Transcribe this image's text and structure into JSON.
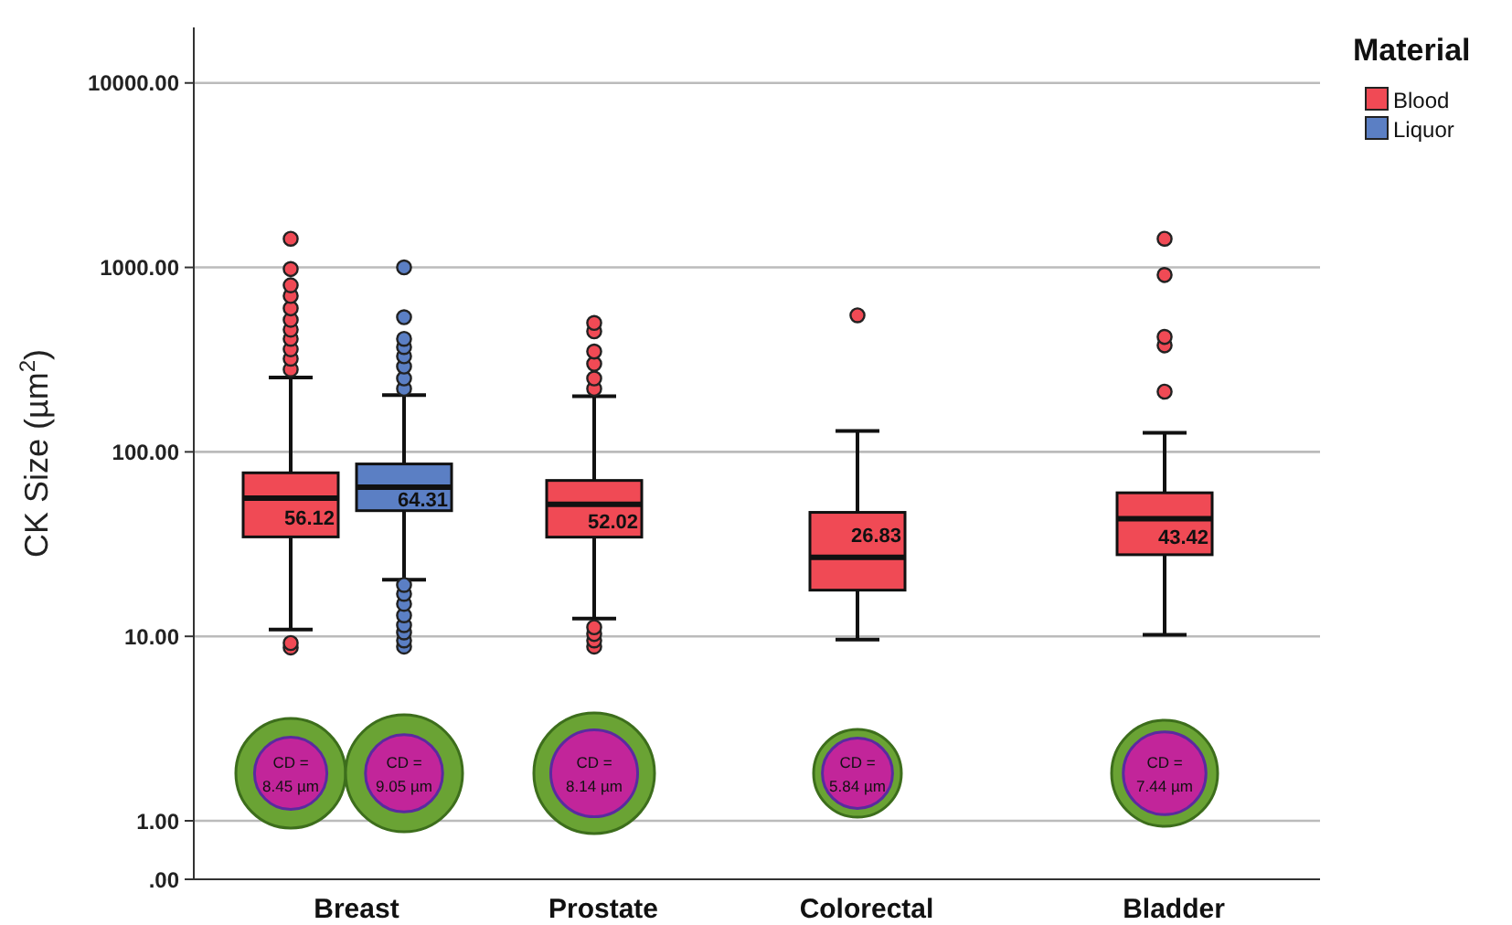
{
  "chart_data": {
    "type": "box",
    "ylabel": "CK Size (µm$^{2}$)",
    "legend_title": "Material",
    "legend": "right",
    "grid": "y",
    "log": true,
    "categories": [
      "Breast",
      "Prostate",
      "Colorectal",
      "Bladder"
    ],
    "ylim": [
      0,
      20000
    ],
    "yticks": [
      {
        "value": 0,
        "label": ".00"
      },
      {
        "value": 1,
        "label": "1.00"
      },
      {
        "value": 10,
        "label": "10.00"
      },
      {
        "value": 100,
        "label": "100.00"
      },
      {
        "value": 1000,
        "label": "1000.00"
      },
      {
        "value": 10000,
        "label": "10000.00"
      }
    ],
    "series": [
      {
        "name": "Blood",
        "color": "#f04a55",
        "boxes": [
          {
            "low": 10.9,
            "q1": 34.6,
            "median": 56.12,
            "q3": 77,
            "high": 253,
            "outliers": [
              8.7,
              9.2,
              280,
              320,
              360,
              410,
              460,
              520,
              600,
              700,
              800,
              980,
              1430
            ]
          },
          {
            "low": 12.5,
            "q1": 34.5,
            "median": 52.02,
            "q3": 70,
            "high": 200,
            "outliers": [
              8.8,
              9.5,
              10.3,
              11.2,
              220,
              250,
              300,
              350,
              450,
              500
            ]
          },
          {
            "low": 9.6,
            "q1": 17.8,
            "median": 26.83,
            "q3": 47,
            "high": 130,
            "outliers": [
              550
            ]
          },
          {
            "low": 10.2,
            "q1": 27.7,
            "median": 43.42,
            "q3": 60,
            "high": 127,
            "outliers": [
              212,
              378,
              420,
              910,
              1430
            ]
          }
        ]
      },
      {
        "name": "Liquor",
        "color": "#5b7fc4",
        "boxes": [
          {
            "low": 20.3,
            "q1": 48,
            "median": 64.31,
            "q3": 86,
            "high": 203,
            "outliers": [
              8.8,
              9.5,
              10.5,
              11.5,
              13,
              15,
              17,
              19,
              220,
              250,
              290,
              330,
              370,
              410,
              537,
              1000
            ]
          },
          null,
          null,
          null
        ]
      }
    ],
    "annotations": [
      "56.12",
      "64.31",
      "52.02",
      "26.83",
      "43.42",
      "CD = 8.45 µm",
      "CD = 9.05 µm",
      "CD = 8.14 µm",
      "CD = 5.84 µm",
      "CD = 7.44 µm"
    ]
  }
}
